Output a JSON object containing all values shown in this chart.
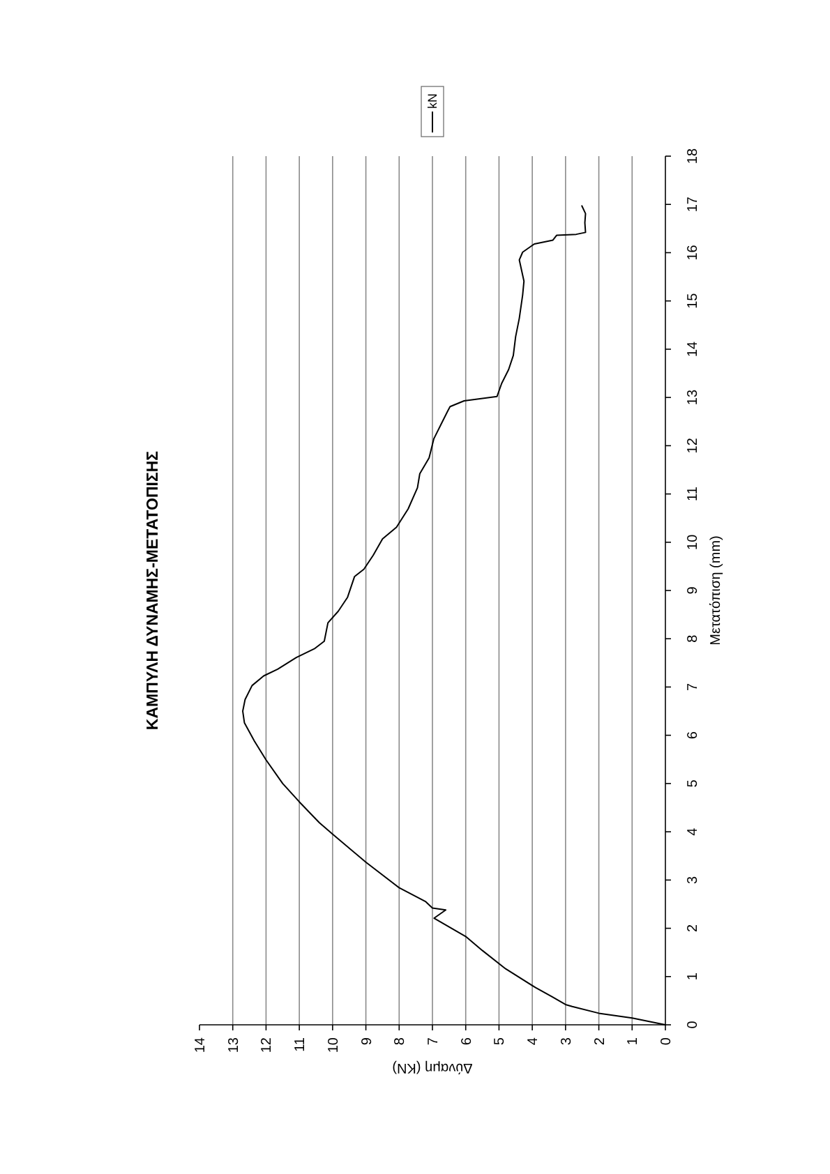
{
  "chart_data": {
    "type": "line",
    "title": "ΚΑΜΠΥΛΗ ΔΥΝΑΜΗΣ-ΜΕΤΑΤΟΠΙΣΗΣ",
    "xlabel": "Δύναμη (KN)",
    "ylabel": "Μετατόπιση (mm)",
    "series": [
      {
        "name": "kN",
        "color": "#000000",
        "x": [
          0,
          1.0,
          2.0,
          2.8,
          3.0,
          3.4,
          3.9,
          4.8,
          5.5,
          6.0,
          6.95,
          6.6,
          7.0,
          7.2,
          8.0,
          9.0,
          10.0,
          10.4,
          11.0,
          11.5,
          12.0,
          12.35,
          12.65,
          12.7,
          12.63,
          12.42,
          12.07,
          11.65,
          11.09,
          10.53,
          10.25,
          10.14,
          9.83,
          9.55,
          9.34,
          9.06,
          8.78,
          8.5,
          8.08,
          7.73,
          7.45,
          7.38,
          7.1,
          6.96,
          6.75,
          6.54,
          6.47,
          6.05,
          5.06,
          4.92,
          4.71,
          4.57,
          4.5,
          4.39,
          4.29,
          4.25,
          4.39,
          4.29,
          3.94,
          3.38,
          3.27,
          2.68,
          2.4,
          2.42,
          2.4,
          2.51
        ],
        "values": [
          0,
          0.14,
          0.24,
          0.38,
          0.42,
          0.58,
          0.77,
          1.16,
          1.54,
          1.83,
          2.21,
          2.38,
          2.42,
          2.55,
          2.84,
          3.37,
          3.95,
          4.19,
          4.62,
          5.0,
          5.49,
          5.88,
          6.26,
          6.5,
          6.74,
          7.03,
          7.23,
          7.37,
          7.61,
          7.8,
          7.95,
          8.33,
          8.57,
          8.86,
          9.29,
          9.44,
          9.73,
          10.07,
          10.31,
          10.69,
          11.13,
          11.42,
          11.75,
          12.14,
          12.43,
          12.72,
          12.81,
          12.93,
          13.02,
          13.29,
          13.58,
          13.87,
          14.26,
          14.64,
          15.12,
          15.41,
          15.85,
          16.01,
          16.18,
          16.26,
          16.36,
          16.38,
          16.42,
          16.62,
          16.81,
          16.97
        ]
      }
    ],
    "xlim": [
      14,
      0
    ],
    "xticks": [
      14,
      13,
      12,
      11,
      10,
      9,
      8,
      7,
      6,
      5,
      4,
      3,
      2,
      1,
      0
    ],
    "ylim": [
      0,
      18
    ],
    "yticks": [
      0,
      1,
      2,
      3,
      4,
      5,
      6,
      7,
      8,
      9,
      10,
      11,
      12,
      13,
      14,
      15,
      16,
      17,
      18
    ],
    "grid": "x",
    "legend": "top"
  }
}
